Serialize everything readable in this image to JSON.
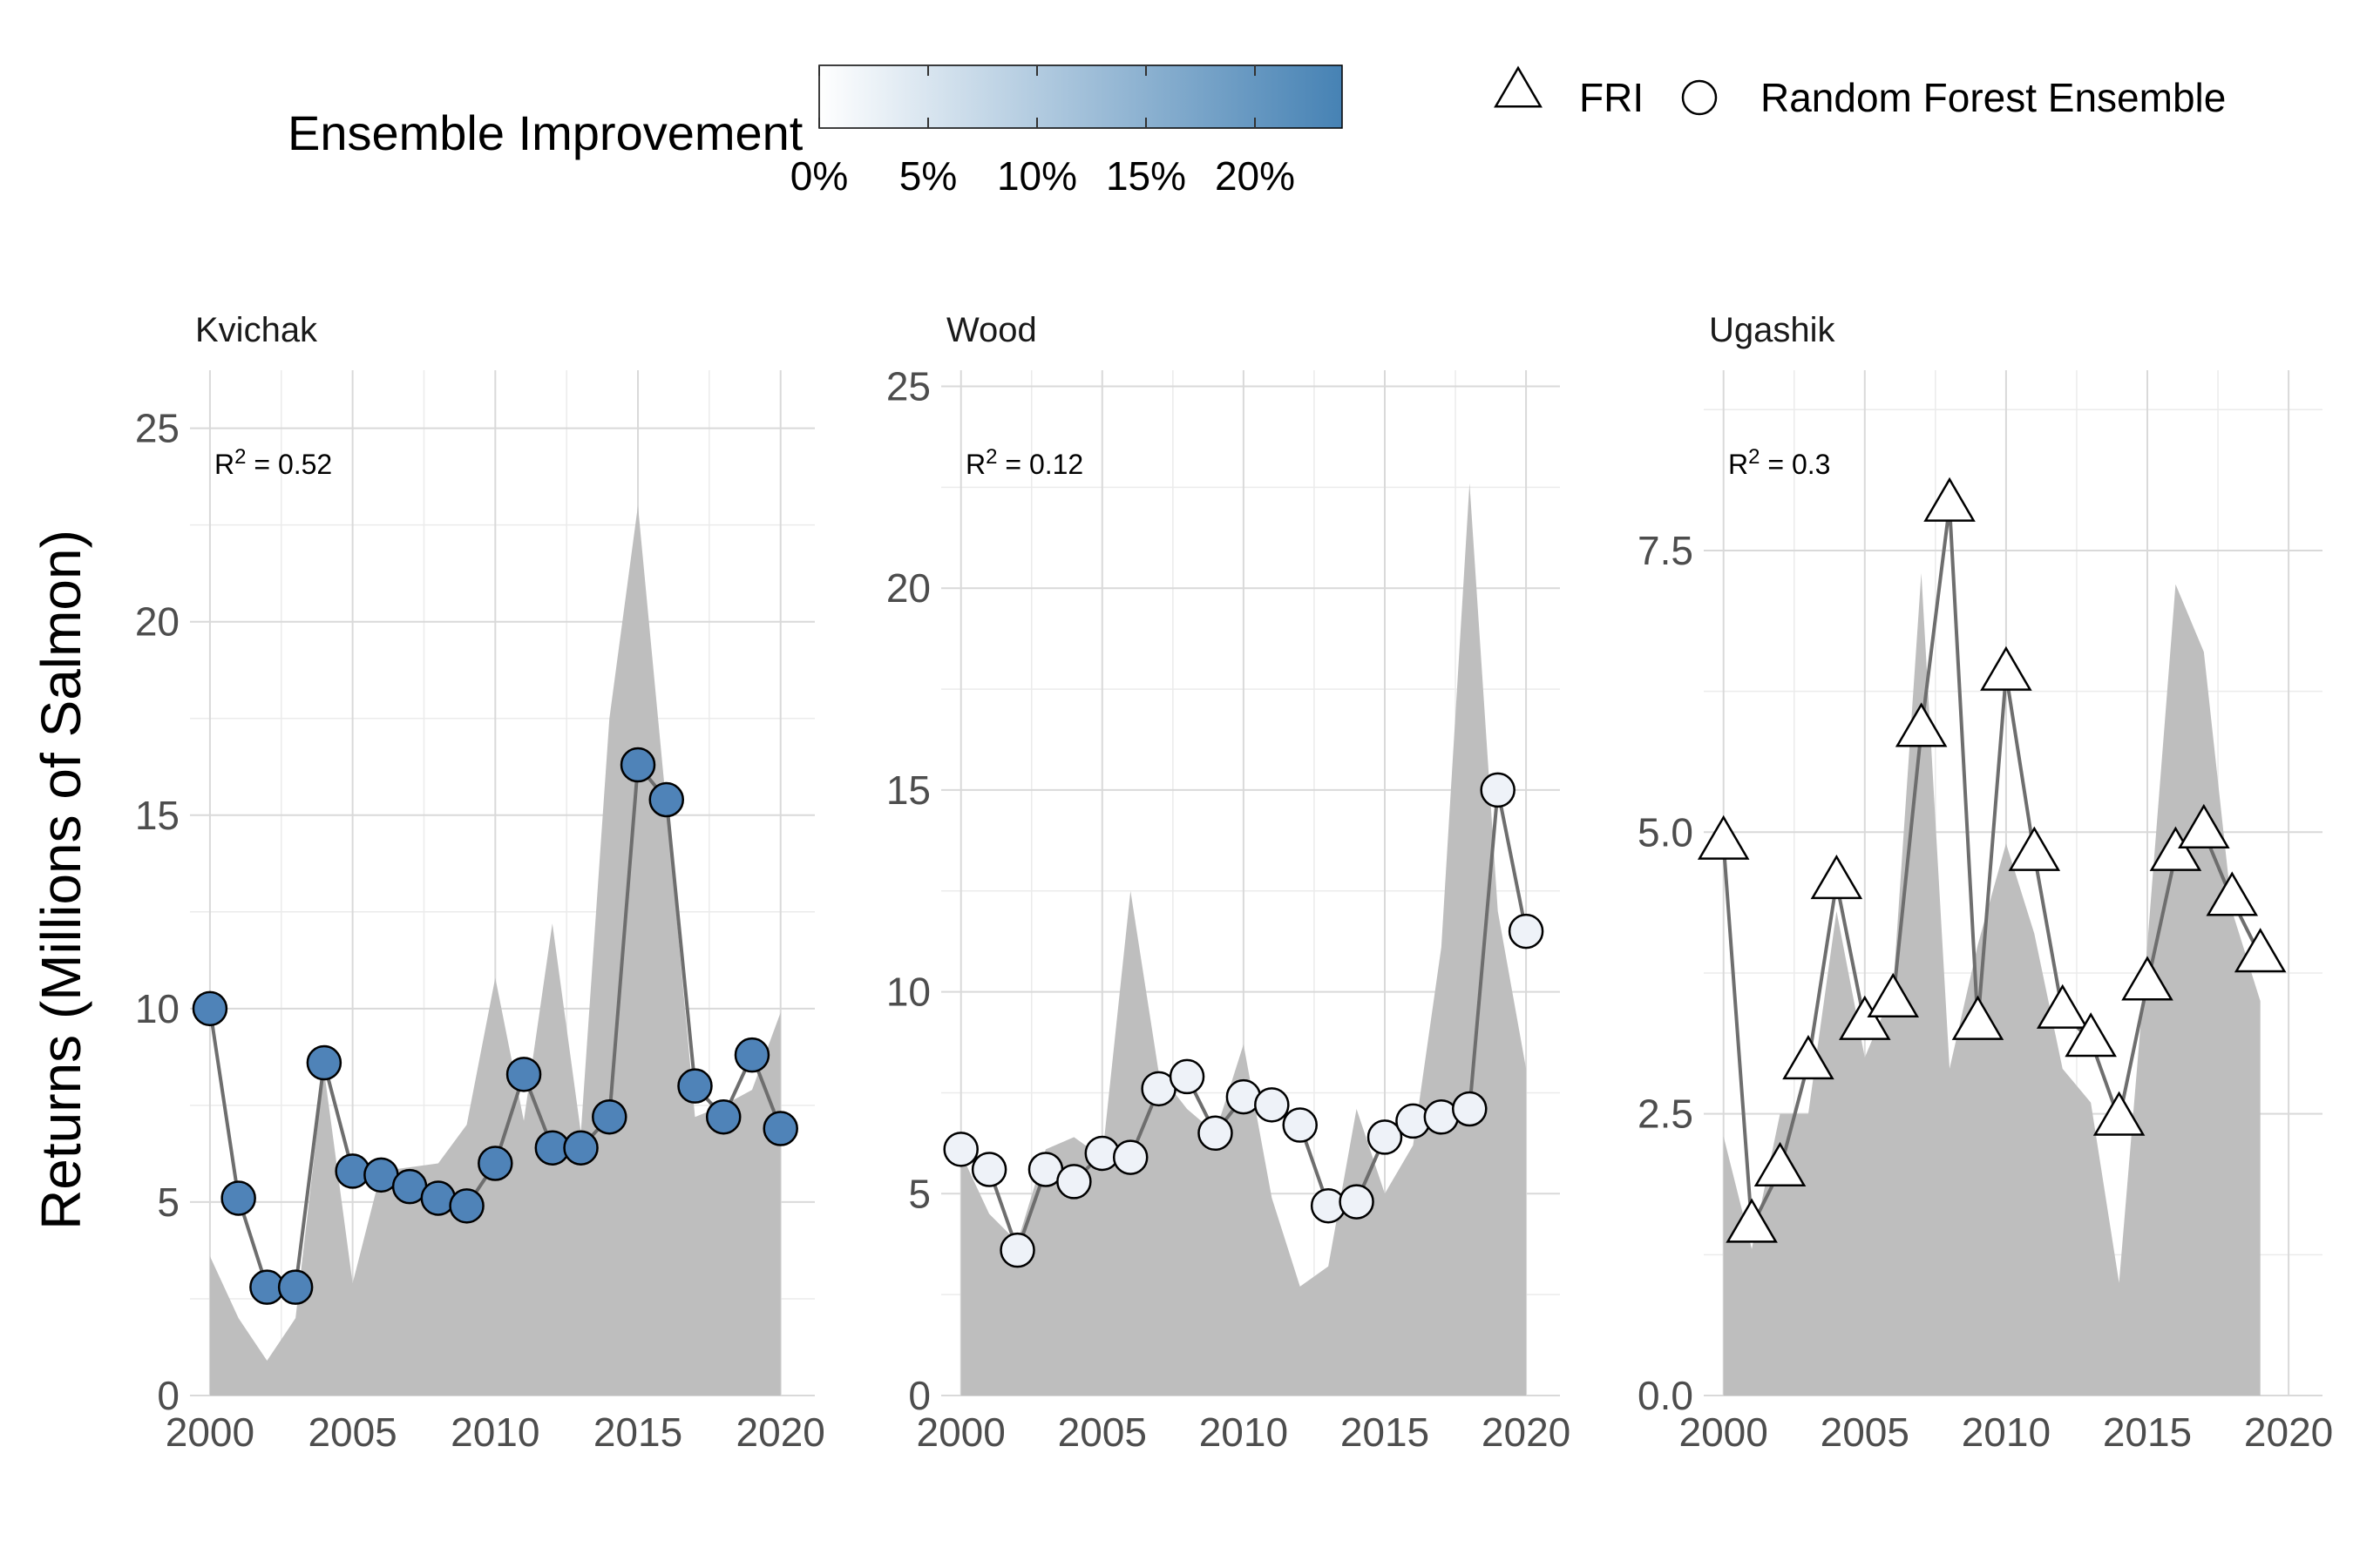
{
  "chart_data": {
    "type": "line",
    "ylabel": "Returns (Millions of Salmon)",
    "legend": {
      "color_title": "Ensemble Improvement",
      "color_ticks": [
        "0%",
        "5%",
        "10%",
        "15%",
        "20%"
      ],
      "color_range": [
        0,
        24
      ],
      "color_low": "#ffffff",
      "color_high": "#4682b4",
      "shape_entries": [
        "FRI",
        "Random Forest Ensemble"
      ],
      "placement": "top"
    },
    "area_color": "#bebebe",
    "line_color": "#6e6e6e",
    "grid": true,
    "panels": [
      {
        "name": "Kvichak",
        "annotation_prefix": "R",
        "annotation_sup": "2",
        "annotation_value": " = 0.52",
        "xlim": [
          1999.3,
          2021.2
        ],
        "ylim": [
          0,
          26.5
        ],
        "xticks": [
          2000,
          2005,
          2010,
          2015,
          2020
        ],
        "xtick_labels": [
          "2000",
          "2005",
          "2010",
          "2015",
          "2020"
        ],
        "yticks": [
          0,
          5,
          10,
          15,
          20,
          25
        ],
        "ytick_labels": [
          "0",
          "5",
          "10",
          "15",
          "20",
          "25"
        ],
        "observed": {
          "x": [
            2000,
            2001,
            2002,
            2003,
            2004,
            2005,
            2006,
            2007,
            2008,
            2009,
            2010,
            2011,
            2012,
            2013,
            2014,
            2015,
            2016,
            2017,
            2018,
            2019,
            2020
          ],
          "y": [
            3.6,
            2.0,
            0.9,
            2.0,
            8.4,
            2.9,
            5.8,
            5.9,
            6.0,
            7.0,
            10.8,
            7.1,
            12.2,
            6.8,
            17.5,
            23.0,
            15.2,
            7.2,
            7.5,
            7.9,
            9.9
          ]
        },
        "forecast": {
          "model": "Random Forest Ensemble",
          "fill": "#4f83b8",
          "x": [
            2000,
            2001,
            2002,
            2003,
            2004,
            2005,
            2006,
            2007,
            2008,
            2009,
            2010,
            2011,
            2012,
            2013,
            2014,
            2015,
            2016,
            2017,
            2018,
            2019,
            2020
          ],
          "y": [
            10.0,
            5.1,
            2.8,
            2.8,
            8.6,
            5.8,
            5.7,
            5.4,
            5.1,
            4.9,
            6.0,
            8.3,
            6.4,
            6.4,
            7.2,
            16.3,
            15.4,
            8.0,
            7.2,
            8.8,
            6.9
          ]
        }
      },
      {
        "name": "Wood",
        "annotation_prefix": "R",
        "annotation_sup": "2",
        "annotation_value": " = 0.12",
        "xlim": [
          1999.3,
          2021.2
        ],
        "ylim": [
          0,
          25.4
        ],
        "xticks": [
          2000,
          2005,
          2010,
          2015,
          2020
        ],
        "xtick_labels": [
          "2000",
          "2005",
          "2010",
          "2015",
          "2020"
        ],
        "yticks": [
          0,
          5,
          10,
          15,
          20,
          25
        ],
        "ytick_labels": [
          "0",
          "5",
          "10",
          "15",
          "20",
          "25"
        ],
        "observed": {
          "x": [
            2000,
            2001,
            2002,
            2003,
            2004,
            2005,
            2006,
            2007,
            2008,
            2009,
            2010,
            2011,
            2012,
            2013,
            2014,
            2015,
            2016,
            2017,
            2018,
            2019,
            2020
          ],
          "y": [
            6.0,
            4.5,
            3.8,
            6.1,
            6.4,
            5.9,
            12.5,
            8.0,
            7.1,
            6.5,
            8.7,
            4.9,
            2.7,
            3.2,
            7.1,
            5.0,
            6.2,
            11.1,
            22.6,
            12.0,
            8.1
          ]
        },
        "forecast": {
          "model": "Random Forest Ensemble",
          "fill": "#eef2f8",
          "x": [
            2000,
            2001,
            2002,
            2003,
            2004,
            2005,
            2006,
            2007,
            2008,
            2009,
            2010,
            2011,
            2012,
            2013,
            2014,
            2015,
            2016,
            2017,
            2018,
            2019,
            2020
          ],
          "y": [
            6.1,
            5.6,
            3.6,
            5.6,
            5.3,
            6.0,
            5.9,
            7.6,
            7.9,
            6.5,
            7.4,
            7.2,
            6.7,
            4.7,
            4.8,
            6.4,
            6.8,
            6.9,
            7.1,
            15.0,
            11.5
          ]
        }
      },
      {
        "name": "Ugashik",
        "annotation_prefix": "R",
        "annotation_sup": "2",
        "annotation_value": " = 0.3",
        "xlim": [
          1999.3,
          2021.2
        ],
        "ylim": [
          0,
          9.1
        ],
        "xticks": [
          2000,
          2005,
          2010,
          2015,
          2020
        ],
        "xtick_labels": [
          "2000",
          "2005",
          "2010",
          "2015",
          "2020"
        ],
        "yticks": [
          0,
          2.5,
          5,
          7.5
        ],
        "ytick_labels": [
          "0.0",
          "2.5",
          "5.0",
          "7.5"
        ],
        "observed": {
          "x": [
            2000,
            2001,
            2002,
            2003,
            2004,
            2005,
            2006,
            2007,
            2008,
            2009,
            2010,
            2011,
            2012,
            2013,
            2014,
            2015,
            2016,
            2017,
            2018,
            2019
          ],
          "y": [
            2.3,
            1.3,
            2.5,
            2.5,
            4.3,
            3.0,
            3.6,
            7.3,
            2.9,
            4.0,
            4.9,
            4.1,
            2.9,
            2.6,
            1.0,
            4.0,
            7.2,
            6.6,
            4.3,
            3.5
          ]
        },
        "forecast": {
          "model": "FRI",
          "fill": "#ffffff",
          "x": [
            2000,
            2001,
            2002,
            2003,
            2004,
            2005,
            2006,
            2007,
            2008,
            2009,
            2010,
            2011,
            2012,
            2013,
            2014,
            2015,
            2016,
            2017,
            2018,
            2019
          ],
          "y": [
            4.9,
            1.5,
            2.0,
            2.95,
            4.55,
            3.3,
            3.5,
            5.9,
            7.9,
            3.3,
            6.4,
            4.8,
            3.4,
            3.15,
            2.45,
            3.65,
            4.8,
            5.0,
            4.4,
            3.9
          ]
        }
      }
    ]
  }
}
